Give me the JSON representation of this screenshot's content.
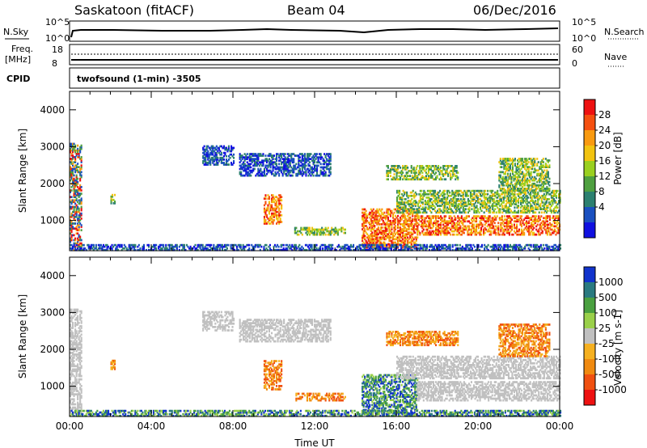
{
  "header": {
    "station": "Saskatoon (fitACF)",
    "beam": "Beam 04",
    "date": "06/Dec/2016"
  },
  "panels": {
    "nsky_label": "N.Sky",
    "nsearch_label": "N.Search",
    "nsky_ticks": [
      "10^5",
      "10^0"
    ],
    "nsearch_ticks": [
      "10^5",
      "10^0"
    ],
    "freq_label": "Freq.",
    "freq_unit": "[MHz]",
    "freq_ticks": [
      "18",
      "8"
    ],
    "nave_label": "Nave",
    "nave_ticks": [
      "60",
      "0"
    ],
    "cpid_label": "CPID",
    "cpid_text": "twofsound (1-min) -3505"
  },
  "chart_data": [
    {
      "type": "heatmap",
      "title": "",
      "ylabel": "Slant Range [km]",
      "xlabel": "",
      "ylim": [
        180,
        4500
      ],
      "yticks": [
        1000,
        2000,
        3000,
        4000
      ],
      "xlim": [
        0,
        24
      ],
      "colorbar": {
        "label": "Power [dB]",
        "ticks": [
          "28",
          "24",
          "20",
          "16",
          "12",
          "8",
          "4"
        ],
        "colors": [
          "#ee1111",
          "#f55010",
          "#f99a10",
          "#f2c310",
          "#9ad020",
          "#4fa040",
          "#2c8070",
          "#1a50c0",
          "#1010e0"
        ]
      },
      "regions": [
        {
          "t0": 0.0,
          "t1": 0.6,
          "r0": 180,
          "r1": 3100,
          "level": "mixed"
        },
        {
          "t0": 2.0,
          "t1": 2.2,
          "r0": 1450,
          "r1": 1700,
          "level": "medium"
        },
        {
          "t0": 6.5,
          "t1": 8.0,
          "r0": 2500,
          "r1": 3000,
          "level": "low"
        },
        {
          "t0": 8.3,
          "t1": 12.8,
          "r0": 2200,
          "r1": 2800,
          "level": "low"
        },
        {
          "t0": 9.5,
          "t1": 10.4,
          "r0": 900,
          "r1": 1700,
          "level": "high"
        },
        {
          "t0": 11.0,
          "t1": 13.5,
          "r0": 600,
          "r1": 800,
          "level": "medium"
        },
        {
          "t0": 14.3,
          "t1": 17.0,
          "r0": 250,
          "r1": 1300,
          "level": "high"
        },
        {
          "t0": 15.5,
          "t1": 19.0,
          "r0": 2100,
          "r1": 2500,
          "level": "medium"
        },
        {
          "t0": 16.0,
          "t1": 24.0,
          "r0": 1200,
          "r1": 1800,
          "level": "medium"
        },
        {
          "t0": 17.0,
          "t1": 24.0,
          "r0": 600,
          "r1": 1100,
          "level": "high"
        },
        {
          "t0": 21.0,
          "t1": 23.5,
          "r0": 1800,
          "r1": 2700,
          "level": "medium"
        },
        {
          "t0": 0.0,
          "t1": 24.0,
          "r0": 180,
          "r1": 320,
          "level": "low"
        }
      ]
    },
    {
      "type": "heatmap",
      "title": "",
      "ylabel": "Slant Range [km]",
      "xlabel": "Time UT",
      "ylim": [
        180,
        4500
      ],
      "yticks": [
        1000,
        2000,
        3000,
        4000
      ],
      "xlim": [
        0,
        24
      ],
      "xticks": [
        "00:00",
        "04:00",
        "08:00",
        "12:00",
        "16:00",
        "20:00",
        "00:00"
      ],
      "colorbar": {
        "label": "Velocity [m s-1]",
        "ticks": [
          "1000",
          "500",
          "100",
          "25",
          "-25",
          "-100",
          "-500",
          "-1000"
        ],
        "colors": [
          "#1133cc",
          "#2a7a80",
          "#4aa040",
          "#9ad04a",
          "#c0c0c0",
          "#f5b020",
          "#f08a10",
          "#f05010",
          "#ee1111"
        ]
      },
      "regions": [
        {
          "t0": 0.0,
          "t1": 0.6,
          "r0": 180,
          "r1": 3100,
          "level": "ground"
        },
        {
          "t0": 2.0,
          "t1": 2.2,
          "r0": 1450,
          "r1": 1700,
          "level": "away"
        },
        {
          "t0": 6.5,
          "t1": 8.0,
          "r0": 2500,
          "r1": 3000,
          "level": "ground"
        },
        {
          "t0": 8.3,
          "t1": 12.8,
          "r0": 2200,
          "r1": 2800,
          "level": "ground"
        },
        {
          "t0": 9.5,
          "t1": 10.4,
          "r0": 900,
          "r1": 1700,
          "level": "away"
        },
        {
          "t0": 11.0,
          "t1": 13.5,
          "r0": 600,
          "r1": 800,
          "level": "away"
        },
        {
          "t0": 14.3,
          "t1": 17.0,
          "r0": 250,
          "r1": 1300,
          "level": "toward"
        },
        {
          "t0": 15.5,
          "t1": 19.0,
          "r0": 2100,
          "r1": 2500,
          "level": "away"
        },
        {
          "t0": 16.0,
          "t1": 24.0,
          "r0": 1200,
          "r1": 1800,
          "level": "ground"
        },
        {
          "t0": 17.0,
          "t1": 24.0,
          "r0": 600,
          "r1": 1100,
          "level": "ground"
        },
        {
          "t0": 21.0,
          "t1": 23.5,
          "r0": 1800,
          "r1": 2700,
          "level": "away"
        },
        {
          "t0": 0.0,
          "t1": 24.0,
          "r0": 180,
          "r1": 320,
          "level": "toward"
        }
      ]
    }
  ]
}
